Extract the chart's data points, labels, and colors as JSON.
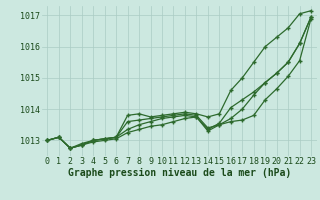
{
  "title": "Graphe pression niveau de la mer (hPa)",
  "xlabel_hours": [
    0,
    1,
    2,
    3,
    4,
    5,
    6,
    7,
    8,
    9,
    10,
    11,
    12,
    13,
    14,
    15,
    16,
    17,
    18,
    19,
    20,
    21,
    22,
    23
  ],
  "series": [
    [
      1013.0,
      1013.1,
      1012.75,
      1012.85,
      1013.0,
      1013.05,
      1013.1,
      1013.8,
      1013.85,
      1013.75,
      1013.8,
      1013.85,
      1013.9,
      1013.85,
      1013.75,
      1013.85,
      1014.6,
      1015.0,
      1015.5,
      1016.0,
      1016.3,
      1016.6,
      1017.05,
      1017.15
    ],
    [
      1013.0,
      1013.1,
      1012.75,
      1012.85,
      1013.0,
      1013.05,
      1013.1,
      1013.6,
      1013.65,
      1013.7,
      1013.75,
      1013.8,
      1013.85,
      1013.8,
      1013.4,
      1013.5,
      1013.7,
      1014.0,
      1014.45,
      1014.85,
      1015.15,
      1015.5,
      1016.1,
      1016.95
    ],
    [
      1013.0,
      1013.1,
      1012.75,
      1012.9,
      1013.0,
      1013.05,
      1013.1,
      1013.35,
      1013.5,
      1013.6,
      1013.7,
      1013.75,
      1013.8,
      1013.75,
      1013.35,
      1013.55,
      1014.05,
      1014.3,
      1014.55,
      1014.85,
      1015.15,
      1015.5,
      1016.1,
      1016.95
    ],
    [
      1013.0,
      1013.1,
      1012.75,
      1012.85,
      1012.95,
      1013.0,
      1013.05,
      1013.25,
      1013.35,
      1013.45,
      1013.5,
      1013.6,
      1013.7,
      1013.75,
      1013.3,
      1013.5,
      1013.6,
      1013.65,
      1013.8,
      1014.3,
      1014.65,
      1015.05,
      1015.55,
      1016.9
    ]
  ],
  "line_color": "#2d6a2d",
  "marker_color": "#2d6a2d",
  "bg_color": "#cce8e0",
  "grid_color": "#aaccc4",
  "text_color": "#1a4a1a",
  "ylim": [
    1012.5,
    1017.3
  ],
  "yticks": [
    1013,
    1014,
    1015,
    1016,
    1017
  ],
  "xticks": [
    0,
    1,
    2,
    3,
    4,
    5,
    6,
    7,
    8,
    9,
    10,
    11,
    12,
    13,
    14,
    15,
    16,
    17,
    18,
    19,
    20,
    21,
    22,
    23
  ],
  "title_fontsize": 7.0,
  "tick_fontsize": 6.0
}
